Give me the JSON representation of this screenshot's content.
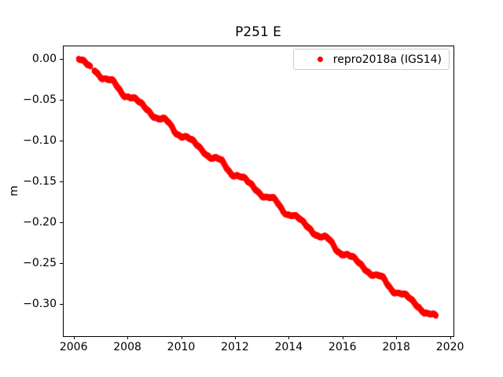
{
  "chart_data": {
    "type": "scatter",
    "title": "P251 E",
    "xlabel": "",
    "ylabel": "m",
    "xlim": [
      2005.6,
      2020.1
    ],
    "ylim": [
      -0.338,
      0.016
    ],
    "xticks": [
      2006,
      2008,
      2010,
      2012,
      2014,
      2016,
      2018,
      2020
    ],
    "xtick_labels": [
      "2006",
      "2008",
      "2010",
      "2012",
      "2014",
      "2016",
      "2018",
      "2020"
    ],
    "yticks": [
      0.0,
      -0.05,
      -0.1,
      -0.15,
      -0.2,
      -0.25,
      -0.3
    ],
    "ytick_labels": [
      "0.00",
      "−0.05",
      "−0.10",
      "−0.15",
      "−0.20",
      "−0.25",
      "−0.30"
    ],
    "grid": false,
    "legend": {
      "position": "upper right",
      "entries": [
        {
          "label": "repro2018a (IGS14)",
          "color": "#ff0000",
          "marker": "dot"
        }
      ]
    },
    "series": [
      {
        "name": "repro2018a (IGS14)",
        "color": "#ff0000",
        "marker_radius_px": 3,
        "sampling_step_years": 0.00274,
        "trend_m_per_yr": -0.0242,
        "annual_amplitude_m": 0.0035,
        "noise_sigma_m": 0.0012,
        "gaps": [
          [
            2006.6,
            2006.73
          ]
        ],
        "anchors": [
          [
            2006.15,
            0.0
          ],
          [
            2006.4,
            -0.006
          ],
          [
            2006.6,
            -0.01
          ],
          [
            2006.75,
            -0.012
          ],
          [
            2007.0,
            -0.019
          ],
          [
            2007.25,
            -0.026
          ],
          [
            2007.5,
            -0.032
          ],
          [
            2007.75,
            -0.038
          ],
          [
            2008.0,
            -0.044
          ],
          [
            2008.25,
            -0.05
          ],
          [
            2008.5,
            -0.056
          ],
          [
            2008.75,
            -0.062
          ],
          [
            2009.0,
            -0.068
          ],
          [
            2009.25,
            -0.074
          ],
          [
            2009.5,
            -0.08
          ],
          [
            2009.75,
            -0.086
          ],
          [
            2010.0,
            -0.092
          ],
          [
            2010.25,
            -0.098
          ],
          [
            2010.5,
            -0.104
          ],
          [
            2010.75,
            -0.11
          ],
          [
            2011.0,
            -0.116
          ],
          [
            2011.25,
            -0.122
          ],
          [
            2011.5,
            -0.128
          ],
          [
            2011.75,
            -0.134
          ],
          [
            2012.0,
            -0.14
          ],
          [
            2012.25,
            -0.146
          ],
          [
            2012.5,
            -0.152
          ],
          [
            2012.75,
            -0.158
          ],
          [
            2013.0,
            -0.164
          ],
          [
            2013.25,
            -0.17
          ],
          [
            2013.5,
            -0.176
          ],
          [
            2013.75,
            -0.182
          ],
          [
            2014.0,
            -0.188
          ],
          [
            2014.25,
            -0.194
          ],
          [
            2014.5,
            -0.2
          ],
          [
            2014.75,
            -0.206
          ],
          [
            2015.0,
            -0.212
          ],
          [
            2015.25,
            -0.218
          ],
          [
            2015.5,
            -0.224
          ],
          [
            2015.75,
            -0.23
          ],
          [
            2016.0,
            -0.236
          ],
          [
            2016.25,
            -0.242
          ],
          [
            2016.5,
            -0.247
          ],
          [
            2016.75,
            -0.253
          ],
          [
            2017.0,
            -0.259
          ],
          [
            2017.25,
            -0.265
          ],
          [
            2017.5,
            -0.271
          ],
          [
            2017.75,
            -0.277
          ],
          [
            2018.0,
            -0.283
          ],
          [
            2018.25,
            -0.289
          ],
          [
            2018.5,
            -0.294
          ],
          [
            2018.75,
            -0.3
          ],
          [
            2019.0,
            -0.306
          ],
          [
            2019.25,
            -0.312
          ],
          [
            2019.45,
            -0.318
          ]
        ]
      }
    ]
  }
}
